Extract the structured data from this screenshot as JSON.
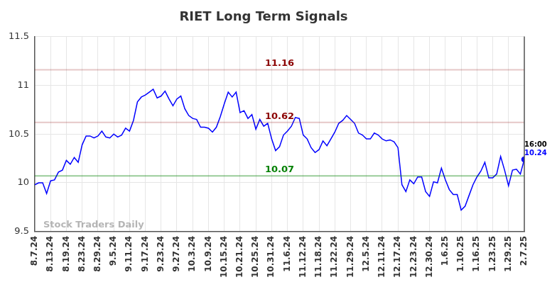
{
  "chart_data": {
    "type": "line",
    "title": "RIET Long Term Signals",
    "categories": [
      "8.7.24",
      null,
      null,
      null,
      "8.13.24",
      null,
      null,
      null,
      "8.19.24",
      null,
      null,
      null,
      "8.23.24",
      null,
      null,
      null,
      "8.29.24",
      null,
      null,
      null,
      "9.5.24",
      null,
      null,
      null,
      "9.11.24",
      null,
      null,
      null,
      "9.17.24",
      null,
      null,
      null,
      "9.23.24",
      null,
      null,
      null,
      "9.27.24",
      null,
      null,
      null,
      "10.3.24",
      null,
      null,
      null,
      "10.9.24",
      null,
      null,
      null,
      "10.15.24",
      null,
      null,
      null,
      "10.21.24",
      null,
      null,
      null,
      "10.25.24",
      null,
      null,
      null,
      "10.31.24",
      null,
      null,
      null,
      "11.6.24",
      null,
      null,
      null,
      "11.12.24",
      null,
      null,
      null,
      "11.18.24",
      null,
      null,
      null,
      "11.22.24",
      null,
      null,
      null,
      "11.29.24",
      null,
      null,
      null,
      "12.5.24",
      null,
      null,
      null,
      "12.11.24",
      null,
      null,
      null,
      "12.17.24",
      null,
      null,
      null,
      "12.23.24",
      null,
      null,
      null,
      "12.30.24",
      null,
      null,
      null,
      "1.6.25",
      null,
      null,
      null,
      "1.10.25",
      null,
      null,
      null,
      "1.16.25",
      null,
      null,
      null,
      "1.23.25",
      null,
      null,
      null,
      "1.29.25",
      null,
      null,
      null,
      "2.7.25"
    ],
    "values": [
      9.98,
      10.0,
      10.0,
      9.89,
      10.02,
      10.03,
      10.11,
      10.13,
      10.23,
      10.19,
      10.26,
      10.21,
      10.39,
      10.48,
      10.48,
      10.46,
      10.48,
      10.53,
      10.47,
      10.46,
      10.5,
      10.47,
      10.49,
      10.56,
      10.53,
      10.64,
      10.83,
      10.88,
      10.9,
      10.93,
      10.96,
      10.87,
      10.89,
      10.94,
      10.86,
      10.79,
      10.86,
      10.89,
      10.76,
      10.69,
      10.66,
      10.65,
      10.57,
      10.57,
      10.56,
      10.52,
      10.57,
      10.68,
      10.81,
      10.93,
      10.88,
      10.93,
      10.72,
      10.74,
      10.66,
      10.7,
      10.55,
      10.65,
      10.58,
      10.61,
      10.45,
      10.33,
      10.37,
      10.49,
      10.53,
      10.58,
      10.67,
      10.66,
      10.49,
      10.45,
      10.36,
      10.31,
      10.34,
      10.43,
      10.38,
      10.45,
      10.52,
      10.61,
      10.64,
      10.69,
      10.65,
      10.61,
      10.51,
      10.49,
      10.45,
      10.45,
      10.51,
      10.49,
      10.45,
      10.43,
      10.44,
      10.42,
      10.36,
      9.98,
      9.91,
      10.03,
      9.99,
      10.06,
      10.06,
      9.91,
      9.86,
      10.01,
      10.0,
      10.15,
      10.03,
      9.93,
      9.88,
      9.88,
      9.72,
      9.76,
      9.87,
      9.98,
      10.06,
      10.12,
      10.21,
      10.05,
      10.05,
      10.09,
      10.27,
      10.13,
      9.97,
      10.13,
      10.14,
      10.09,
      10.24
    ],
    "color": "#0000ff",
    "ylim": [
      9.5,
      11.5
    ],
    "yticks": [
      9.5,
      10,
      10.5,
      11,
      11.5
    ],
    "grid": true,
    "hlines": [
      {
        "value": 11.16,
        "color": "#8b0000"
      },
      {
        "value": 10.62,
        "color": "#8b0000"
      },
      {
        "value": 10.07,
        "color": "#008000"
      }
    ],
    "annotations": [
      {
        "text": "16:00"
      }
    ],
    "watermark": "Stock Traders Daily"
  }
}
